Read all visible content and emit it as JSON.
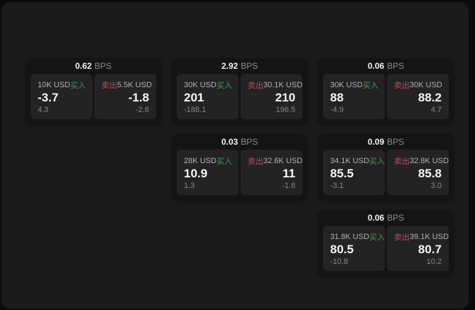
{
  "page": {
    "background": "#0b0b0b",
    "container_background": "#1b1b1d"
  },
  "colors": {
    "buy": "#4e9160",
    "sell": "#b94b5f",
    "card": "#141415",
    "panel": "#232325"
  },
  "labels": {
    "bps_unit": "BPS",
    "buy": "买入",
    "sell": "卖出"
  },
  "cards": [
    {
      "row": 1,
      "col": 1,
      "bps": "0.62",
      "buy": {
        "amount": "10K USD",
        "value": "-3.7",
        "delta": "4.3"
      },
      "sell": {
        "amount": "5.5K USD",
        "value": "-1.8",
        "delta": "-2.6"
      }
    },
    {
      "row": 1,
      "col": 2,
      "bps": "2.92",
      "buy": {
        "amount": "30K USD",
        "value": "201",
        "delta": "-188.1"
      },
      "sell": {
        "amount": "30.1K USD",
        "value": "210",
        "delta": "196.5"
      }
    },
    {
      "row": 1,
      "col": 3,
      "bps": "0.06",
      "buy": {
        "amount": "30K USD",
        "value": "88",
        "delta": "-4.9"
      },
      "sell": {
        "amount": "30K USD",
        "value": "88.2",
        "delta": "4.7"
      }
    },
    {
      "row": 2,
      "col": 2,
      "bps": "0.03",
      "buy": {
        "amount": "28K USD",
        "value": "10.9",
        "delta": "1.3"
      },
      "sell": {
        "amount": "32.6K USD",
        "value": "11",
        "delta": "-1.8"
      }
    },
    {
      "row": 2,
      "col": 3,
      "bps": "0.09",
      "buy": {
        "amount": "34.1K USD",
        "value": "85.5",
        "delta": "-3.1"
      },
      "sell": {
        "amount": "32.8K USD",
        "value": "85.8",
        "delta": "3.0"
      }
    },
    {
      "row": 3,
      "col": 3,
      "bps": "0.06",
      "buy": {
        "amount": "31.8K USD",
        "value": "80.5",
        "delta": "-10.8"
      },
      "sell": {
        "amount": "39.1K USD",
        "value": "80.7",
        "delta": "10.2"
      }
    }
  ]
}
